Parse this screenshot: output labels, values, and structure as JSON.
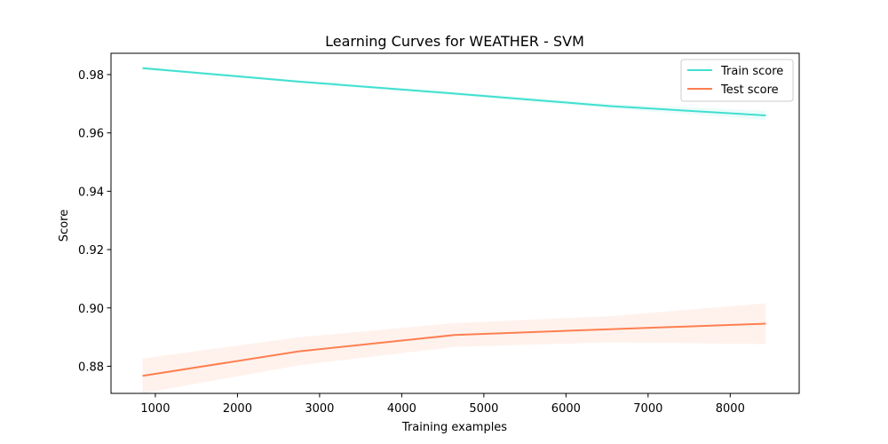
{
  "chart_data": {
    "type": "line",
    "title": "Learning Curves for WEATHER - SVM",
    "xlabel": "Training examples",
    "ylabel": "Score",
    "xlim": [
      460,
      8840
    ],
    "ylim": [
      0.8707,
      0.9873
    ],
    "xticks": [
      1000,
      2000,
      3000,
      4000,
      5000,
      6000,
      7000,
      8000
    ],
    "yticks": [
      0.88,
      0.9,
      0.92,
      0.94,
      0.96,
      0.98
    ],
    "xtick_labels": [
      "1000",
      "2000",
      "3000",
      "4000",
      "5000",
      "6000",
      "7000",
      "8000"
    ],
    "ytick_labels": [
      "0.88",
      "0.90",
      "0.92",
      "0.94",
      "0.96",
      "0.98"
    ],
    "grid": false,
    "legend_position": "top-right",
    "x": [
      844,
      2741,
      4639,
      6536,
      8434
    ],
    "series": [
      {
        "name": "Train score",
        "color": "#40e0d0",
        "values": [
          0.9822,
          0.9776,
          0.9735,
          0.9692,
          0.966
        ],
        "band_lower": [
          0.9817,
          0.9771,
          0.9729,
          0.9684,
          0.9644
        ],
        "band_upper": [
          0.9827,
          0.9781,
          0.9741,
          0.97,
          0.9676
        ]
      },
      {
        "name": "Test score",
        "color": "#ff7f50",
        "values": [
          0.8767,
          0.8851,
          0.8907,
          0.8927,
          0.8946
        ],
        "band_lower": [
          0.8707,
          0.8803,
          0.8866,
          0.8882,
          0.8876
        ],
        "band_upper": [
          0.8827,
          0.8899,
          0.8948,
          0.8972,
          0.9016
        ]
      }
    ]
  }
}
